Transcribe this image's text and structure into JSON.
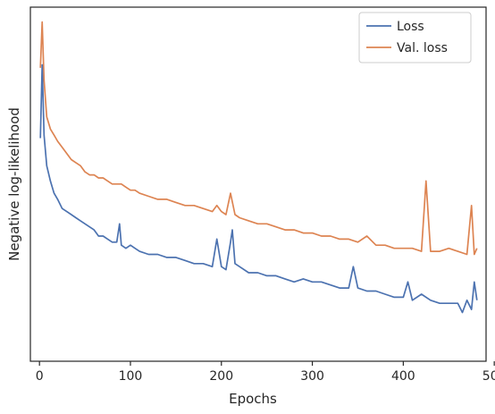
{
  "chart_data": {
    "type": "line",
    "title": "",
    "xlabel": "Epochs",
    "ylabel": "Negative log-likelihood",
    "xlim": [
      -10,
      491
    ],
    "ylim": [
      0,
      100
    ],
    "yticks_shown": false,
    "xticks": [
      0,
      100,
      200,
      300,
      400,
      500
    ],
    "grid": false,
    "legend_position": "top-right",
    "series": [
      {
        "name": "Loss",
        "color": "#4c72b0",
        "x": [
          1,
          3,
          5,
          8,
          12,
          16,
          20,
          25,
          30,
          35,
          40,
          45,
          50,
          55,
          60,
          65,
          70,
          75,
          80,
          85,
          88,
          90,
          95,
          100,
          105,
          110,
          120,
          130,
          140,
          150,
          160,
          170,
          180,
          190,
          195,
          200,
          205,
          210,
          212,
          215,
          220,
          230,
          240,
          250,
          260,
          270,
          280,
          290,
          300,
          310,
          320,
          330,
          340,
          345,
          350,
          360,
          370,
          380,
          390,
          400,
          405,
          410,
          420,
          430,
          440,
          450,
          460,
          465,
          470,
          475,
          478,
          481
        ],
        "y": [
          63,
          87,
          64,
          54,
          49,
          45,
          43,
          40,
          39,
          38,
          37,
          36,
          35,
          34,
          33,
          31,
          31,
          30,
          29,
          29,
          35,
          28,
          27,
          28,
          27,
          26,
          25,
          25,
          24,
          24,
          23,
          22,
          22,
          21,
          30,
          21,
          20,
          29,
          33,
          22,
          21,
          19,
          19,
          18,
          18,
          17,
          16,
          17,
          16,
          16,
          15,
          14,
          14,
          21,
          14,
          13,
          13,
          12,
          11,
          11,
          16,
          10,
          12,
          10,
          9,
          9,
          9,
          6,
          10,
          7,
          16,
          10
        ]
      },
      {
        "name": "Val. loss",
        "color": "#dd8452",
        "x": [
          1,
          3,
          5,
          8,
          12,
          16,
          20,
          25,
          30,
          35,
          40,
          45,
          50,
          55,
          60,
          65,
          70,
          75,
          80,
          85,
          90,
          95,
          100,
          105,
          110,
          120,
          130,
          140,
          150,
          160,
          170,
          180,
          190,
          195,
          200,
          205,
          210,
          215,
          220,
          230,
          240,
          250,
          260,
          270,
          280,
          290,
          300,
          310,
          320,
          330,
          340,
          350,
          360,
          370,
          380,
          390,
          400,
          410,
          420,
          425,
          430,
          440,
          450,
          460,
          470,
          475,
          478,
          481
        ],
        "y": [
          86,
          101,
          82,
          70,
          66,
          64,
          62,
          60,
          58,
          56,
          55,
          54,
          52,
          51,
          51,
          50,
          50,
          49,
          48,
          48,
          48,
          47,
          46,
          46,
          45,
          44,
          43,
          43,
          42,
          41,
          41,
          40,
          39,
          41,
          39,
          38,
          45,
          38,
          37,
          36,
          35,
          35,
          34,
          33,
          33,
          32,
          32,
          31,
          31,
          30,
          30,
          29,
          31,
          28,
          28,
          27,
          27,
          27,
          26,
          49,
          26,
          26,
          27,
          26,
          25,
          41,
          25,
          27
        ]
      }
    ]
  }
}
